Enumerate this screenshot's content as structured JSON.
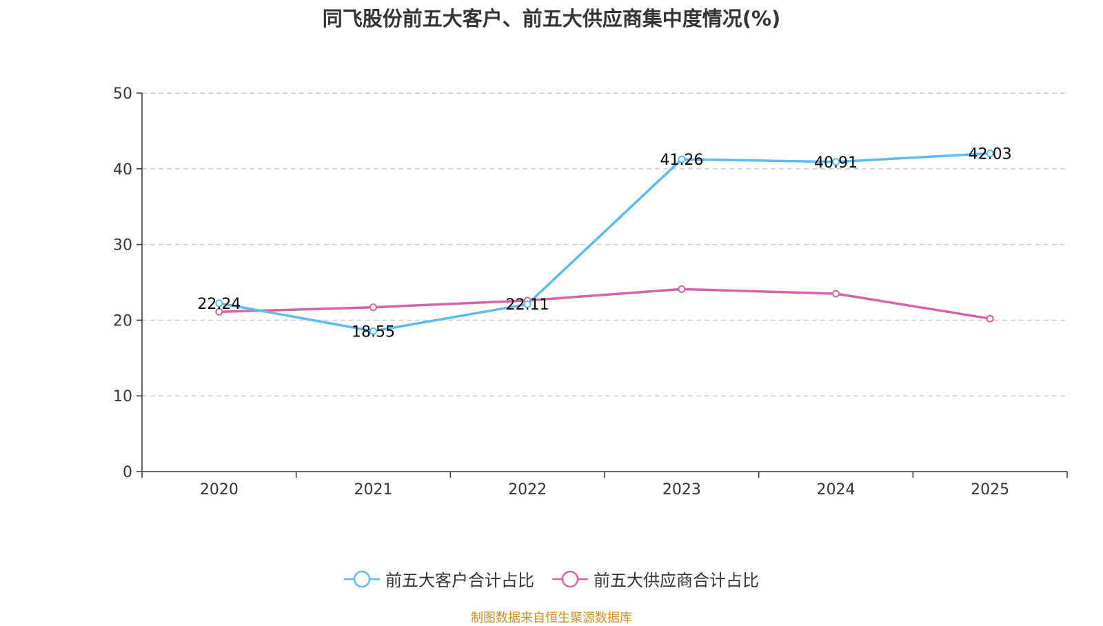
{
  "chart_data": {
    "type": "line",
    "title": "同飞股份前五大客户、前五大供应商集中度情况(%)",
    "categories": [
      "2020",
      "2021",
      "2022",
      "2023",
      "2024",
      "2025"
    ],
    "ylim": [
      0,
      50
    ],
    "yticks": [
      0,
      10,
      20,
      30,
      40,
      50
    ],
    "grid": true,
    "legend_position": "bottom",
    "series": [
      {
        "name": "前五大客户合计占比",
        "color": "#5bbcef",
        "values": [
          22.24,
          18.55,
          22.11,
          41.26,
          40.91,
          42.03
        ],
        "labels": [
          "22.24",
          "18.55",
          "22.11",
          "41.26",
          "40.91",
          "42.03"
        ],
        "show_labels": true
      },
      {
        "name": "前五大供应商合计占比",
        "color": "#d962a6",
        "values": [
          21.1,
          21.7,
          22.6,
          24.1,
          23.5,
          20.2
        ],
        "show_labels": false
      }
    ],
    "source": "制图数据来自恒生聚源数据库"
  }
}
